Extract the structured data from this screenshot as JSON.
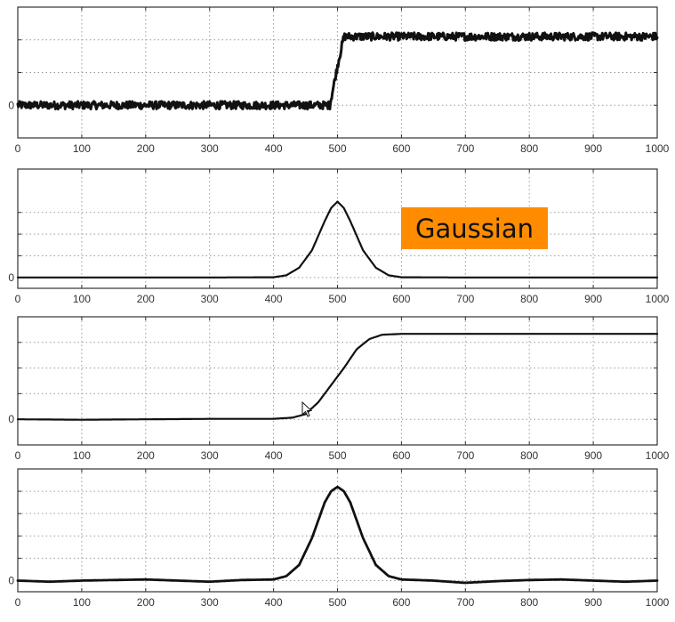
{
  "chart_data": [
    {
      "type": "line",
      "description_role": "noisy step signal",
      "xlim": [
        0,
        1000
      ],
      "ylim": [
        -0.5,
        1.5
      ],
      "x_ticks": [
        "0",
        "100",
        "200",
        "300",
        "400",
        "500",
        "600",
        "700",
        "800",
        "900",
        "1000"
      ],
      "y_ticks": [
        "0"
      ],
      "y_grid": [
        0,
        0.5,
        1
      ],
      "grid": true,
      "series": [
        {
          "x": [
            0,
            50,
            100,
            150,
            200,
            250,
            300,
            350,
            400,
            450,
            488,
            500,
            510,
            550,
            600,
            650,
            700,
            750,
            800,
            850,
            900,
            950,
            1000
          ],
          "y": [
            0,
            0,
            0,
            0,
            0,
            0,
            0,
            0,
            0,
            0,
            0,
            0.6,
            1.05,
            1.05,
            1.05,
            1.05,
            1.05,
            1.05,
            1.05,
            1.05,
            1.05,
            1.05,
            1.05
          ],
          "noise_amplitude": 0.06
        }
      ]
    },
    {
      "type": "line",
      "description_role": "gaussian kernel",
      "xlim": [
        0,
        1000
      ],
      "ylim": [
        -0.1,
        1.0
      ],
      "x_ticks": [
        "0",
        "100",
        "200",
        "300",
        "400",
        "500",
        "600",
        "700",
        "800",
        "900",
        "1000"
      ],
      "y_ticks": [
        "0"
      ],
      "y_grid": [
        0,
        0.2,
        0.4,
        0.6
      ],
      "grid": true,
      "annotation": {
        "text": "Gaussian",
        "background": "#ff8c00"
      },
      "series": [
        {
          "x": [
            0,
            300,
            400,
            420,
            440,
            460,
            480,
            490,
            500,
            510,
            520,
            540,
            560,
            580,
            600,
            700,
            1000
          ],
          "y": [
            0,
            0,
            0.002,
            0.02,
            0.09,
            0.25,
            0.52,
            0.64,
            0.7,
            0.64,
            0.52,
            0.25,
            0.09,
            0.02,
            0.002,
            0,
            0
          ]
        }
      ]
    },
    {
      "type": "line",
      "description_role": "smoothed step (convolution)",
      "xlim": [
        0,
        1000
      ],
      "ylim": [
        -0.3,
        1.2
      ],
      "x_ticks": [
        "0",
        "100",
        "200",
        "300",
        "400",
        "500",
        "600",
        "700",
        "800",
        "900",
        "1000"
      ],
      "y_ticks": [
        "0"
      ],
      "y_grid": [
        0,
        0.3,
        0.6,
        0.9
      ],
      "grid": true,
      "series": [
        {
          "x": [
            0,
            100,
            200,
            300,
            400,
            430,
            450,
            470,
            490,
            500,
            510,
            530,
            550,
            570,
            600,
            700,
            800,
            900,
            1000
          ],
          "y": [
            0,
            -0.005,
            0,
            0.005,
            0.005,
            0.02,
            0.06,
            0.2,
            0.4,
            0.5,
            0.6,
            0.82,
            0.94,
            0.99,
            1.0,
            1.0,
            1.0,
            1.0,
            1.0
          ]
        }
      ]
    },
    {
      "type": "line",
      "description_role": "derivative response",
      "xlim": [
        0,
        1000
      ],
      "ylim": [
        -0.1,
        1.0
      ],
      "x_ticks": [
        "0",
        "100",
        "200",
        "300",
        "400",
        "500",
        "600",
        "700",
        "800",
        "900",
        "1000"
      ],
      "y_ticks": [
        "0"
      ],
      "y_grid": [
        0,
        0.2,
        0.4,
        0.6,
        0.8
      ],
      "grid": true,
      "series": [
        {
          "x": [
            0,
            50,
            100,
            150,
            200,
            250,
            300,
            350,
            400,
            420,
            440,
            460,
            480,
            490,
            500,
            510,
            520,
            540,
            560,
            580,
            600,
            650,
            700,
            750,
            800,
            850,
            900,
            950,
            1000
          ],
          "y": [
            0,
            -0.01,
            0,
            0.005,
            0.01,
            0,
            -0.01,
            0.005,
            0.01,
            0.04,
            0.14,
            0.38,
            0.7,
            0.8,
            0.84,
            0.8,
            0.7,
            0.38,
            0.14,
            0.04,
            0.01,
            0,
            -0.02,
            -0.005,
            0.005,
            0.01,
            0,
            -0.01,
            0
          ]
        }
      ]
    }
  ]
}
